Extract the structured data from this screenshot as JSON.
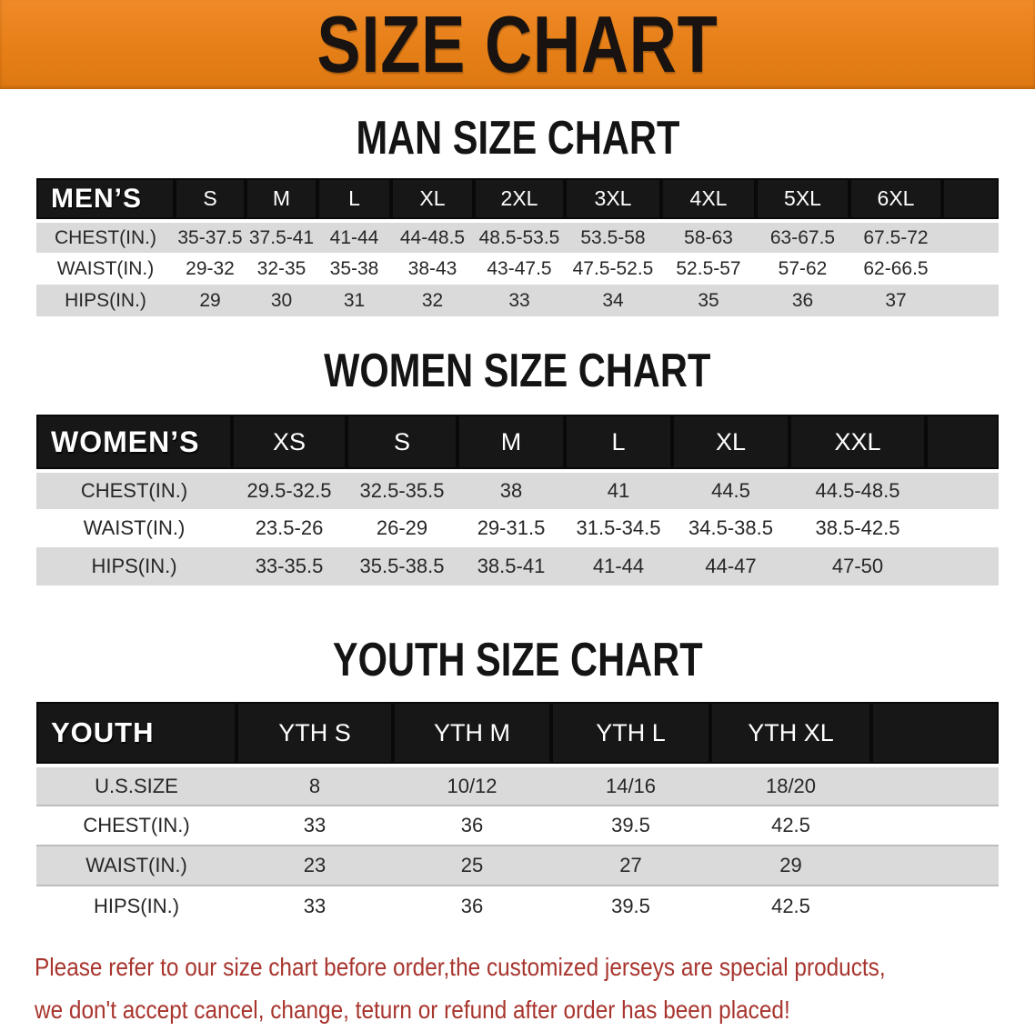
{
  "banner": {
    "title": "SIZE CHART"
  },
  "sections": [
    {
      "title": "MAN SIZE CHART",
      "header_label": "MEN’S",
      "columns": [
        "S",
        "M",
        "L",
        "XL",
        "2XL",
        "3XL",
        "4XL",
        "5XL",
        "6XL"
      ],
      "rows": [
        {
          "label": "CHEST(IN.)",
          "values": [
            "35-37.5",
            "37.5-41",
            "41-44",
            "44-48.5",
            "48.5-53.5",
            "53.5-58",
            "58-63",
            "63-67.5",
            "67.5-72"
          ]
        },
        {
          "label": "WAIST(IN.)",
          "values": [
            "29-32",
            "32-35",
            "35-38",
            "38-43",
            "43-47.5",
            "47.5-52.5",
            "52.5-57",
            "57-62",
            "62-66.5"
          ]
        },
        {
          "label": "HIPS(IN.)",
          "values": [
            "29",
            "30",
            "31",
            "32",
            "33",
            "34",
            "35",
            "36",
            "37"
          ]
        }
      ]
    },
    {
      "title": "WOMEN SIZE CHART",
      "header_label": "WOMEN’S",
      "columns": [
        "XS",
        "S",
        "M",
        "L",
        "XL",
        "XXL"
      ],
      "rows": [
        {
          "label": "CHEST(IN.)",
          "values": [
            "29.5-32.5",
            "32.5-35.5",
            "38",
            "41",
            "44.5",
            "44.5-48.5"
          ]
        },
        {
          "label": "WAIST(IN.)",
          "values": [
            "23.5-26",
            "26-29",
            "29-31.5",
            "31.5-34.5",
            "34.5-38.5",
            "38.5-42.5"
          ]
        },
        {
          "label": "HIPS(IN.)",
          "values": [
            "33-35.5",
            "35.5-38.5",
            "38.5-41",
            "41-44",
            "44-47",
            "47-50"
          ]
        }
      ]
    },
    {
      "title": "YOUTH SIZE CHART",
      "header_label": "YOUTH",
      "columns": [
        "YTH S",
        "YTH M",
        "YTH L",
        "YTH XL"
      ],
      "rows": [
        {
          "label": "U.S.SIZE",
          "values": [
            "8",
            "10/12",
            "14/16",
            "18/20"
          ]
        },
        {
          "label": "CHEST(IN.)",
          "values": [
            "33",
            "36",
            "39.5",
            "42.5"
          ]
        },
        {
          "label": "WAIST(IN.)",
          "values": [
            "23",
            "25",
            "27",
            "29"
          ]
        },
        {
          "label": "HIPS(IN.)",
          "values": [
            "33",
            "36",
            "39.5",
            "42.5"
          ]
        }
      ]
    }
  ],
  "footer": {
    "line1": "Please refer to our size chart before order,the customized jerseys are special products,",
    "line2": "we don't accept cancel, change, teturn or refund after order has been placed!"
  },
  "colors": {
    "banner_bg": "#E67F17",
    "header_bar": "#171717",
    "row_gray": "#DADADA",
    "row_white": "#FFFFFF",
    "footer_text": "#A8352E",
    "title_text": "#141414"
  }
}
